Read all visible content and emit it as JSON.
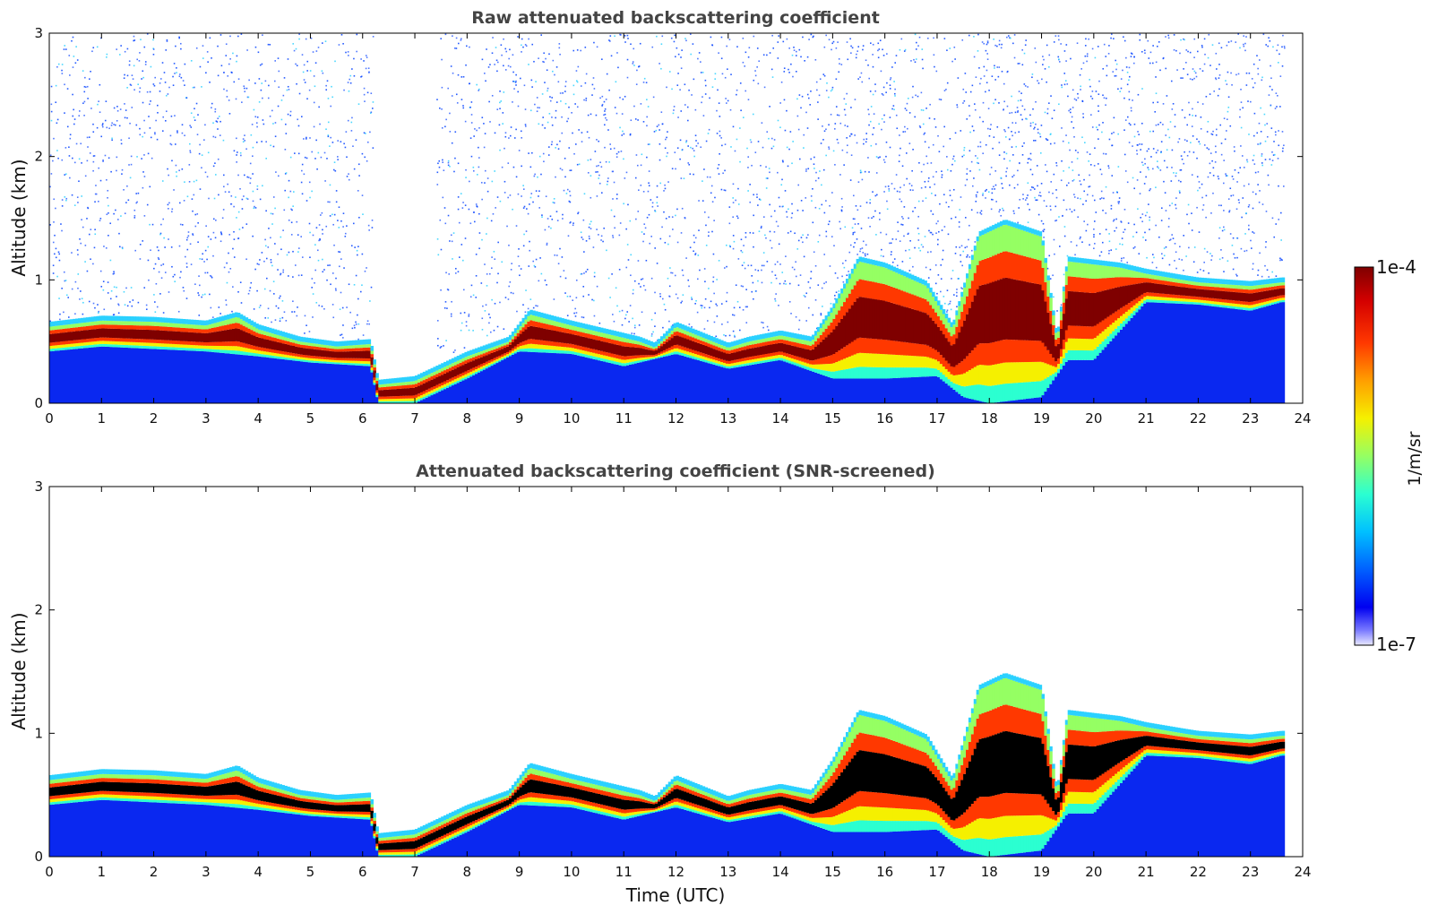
{
  "chart_data": [
    {
      "type": "heatmap",
      "title": "Raw attenuated backscattering coefficient",
      "xlabel": "",
      "ylabel": "Altitude (km)",
      "xlim": [
        0,
        24
      ],
      "ylim": [
        0,
        3
      ],
      "x_ticks": [
        "0",
        "1",
        "2",
        "3",
        "4",
        "5",
        "6",
        "7",
        "8",
        "9",
        "10",
        "11",
        "12",
        "13",
        "14",
        "15",
        "16",
        "17",
        "18",
        "19",
        "20",
        "21",
        "22",
        "23",
        "24"
      ],
      "y_ticks": [
        "0",
        "1",
        "2",
        "3"
      ],
      "data_end_hour": 23.65,
      "no_data_gap_hours": [
        6.2,
        7.4
      ],
      "noise_above_layer": true,
      "layer_top_km": [
        [
          0,
          0.62
        ],
        [
          1,
          0.67
        ],
        [
          2,
          0.66
        ],
        [
          3,
          0.63
        ],
        [
          3.6,
          0.7
        ],
        [
          4,
          0.6
        ],
        [
          4.8,
          0.5
        ],
        [
          5.5,
          0.46
        ],
        [
          6.15,
          0.48
        ],
        [
          6.3,
          0.15
        ],
        [
          7,
          0.18
        ],
        [
          8,
          0.38
        ],
        [
          8.8,
          0.5
        ],
        [
          9.2,
          0.72
        ],
        [
          10,
          0.63
        ],
        [
          10.8,
          0.55
        ],
        [
          11.3,
          0.5
        ],
        [
          11.6,
          0.45
        ],
        [
          12,
          0.62
        ],
        [
          13,
          0.45
        ],
        [
          13.4,
          0.5
        ],
        [
          14,
          0.55
        ],
        [
          14.6,
          0.5
        ],
        [
          15,
          0.75
        ],
        [
          15.5,
          1.15
        ],
        [
          16,
          1.1
        ],
        [
          16.8,
          0.95
        ],
        [
          17.3,
          0.6
        ],
        [
          17.8,
          1.35
        ],
        [
          18.3,
          1.45
        ],
        [
          19,
          1.35
        ],
        [
          19.3,
          0.5
        ],
        [
          19.5,
          1.15
        ],
        [
          20.5,
          1.1
        ],
        [
          21,
          1.05
        ],
        [
          21.7,
          1.0
        ],
        [
          22,
          0.98
        ],
        [
          23,
          0.95
        ],
        [
          23.6,
          0.98
        ]
      ],
      "layer_bottom_km": [
        [
          0,
          0.42
        ],
        [
          1,
          0.46
        ],
        [
          2,
          0.44
        ],
        [
          3,
          0.42
        ],
        [
          4,
          0.38
        ],
        [
          5,
          0.33
        ],
        [
          6.15,
          0.3
        ],
        [
          6.3,
          0.0
        ],
        [
          7,
          0.0
        ],
        [
          8,
          0.2
        ],
        [
          9,
          0.42
        ],
        [
          10,
          0.4
        ],
        [
          11,
          0.3
        ],
        [
          12,
          0.4
        ],
        [
          13,
          0.28
        ],
        [
          14,
          0.35
        ],
        [
          15,
          0.2
        ],
        [
          16,
          0.2
        ],
        [
          17,
          0.22
        ],
        [
          17.5,
          0.05
        ],
        [
          18,
          0.0
        ],
        [
          19,
          0.05
        ],
        [
          19.5,
          0.35
        ],
        [
          20,
          0.35
        ],
        [
          21,
          0.82
        ],
        [
          22,
          0.8
        ],
        [
          23,
          0.75
        ],
        [
          23.6,
          0.82
        ]
      ]
    },
    {
      "type": "heatmap",
      "title": "Attenuated backscattering coefficient (SNR-screened)",
      "xlabel": "Time (UTC)",
      "ylabel": "Altitude (km)",
      "xlim": [
        0,
        24
      ],
      "ylim": [
        0,
        3
      ],
      "x_ticks": [
        "0",
        "1",
        "2",
        "3",
        "4",
        "5",
        "6",
        "7",
        "8",
        "9",
        "10",
        "11",
        "12",
        "13",
        "14",
        "15",
        "16",
        "17",
        "18",
        "19",
        "20",
        "21",
        "22",
        "23",
        "24"
      ],
      "y_ticks": [
        "0",
        "1",
        "2",
        "3"
      ],
      "data_end_hour": 23.65,
      "noise_above_layer": false,
      "saturated_core_color": "#000000"
    }
  ],
  "colorbar": {
    "max_label": "1e-4",
    "min_label": "1e-7",
    "unit": "1/m/sr",
    "colors": [
      "#7f0000",
      "#d40000",
      "#ff3800",
      "#ff9e00",
      "#f5f000",
      "#95ff63",
      "#2bffd1",
      "#00c0ff",
      "#0060ff",
      "#0000f0",
      "#7878ff",
      "#e8e8ff"
    ]
  }
}
